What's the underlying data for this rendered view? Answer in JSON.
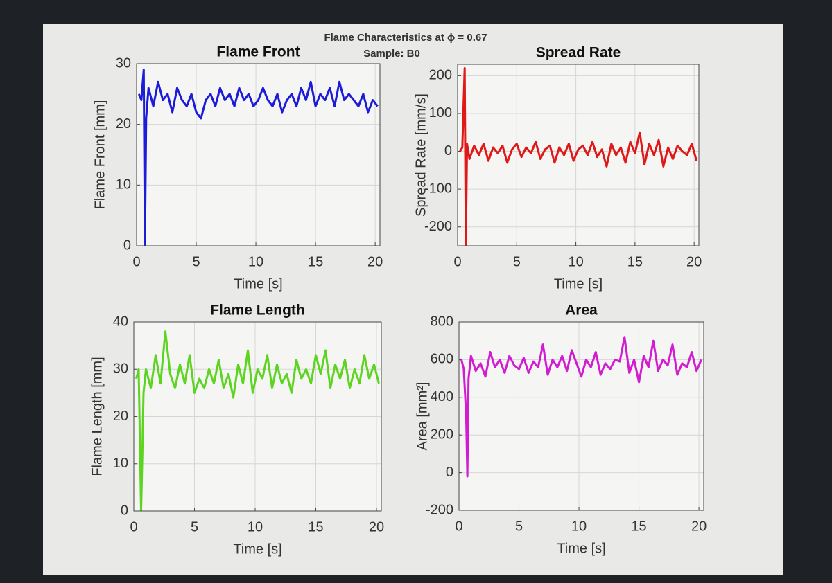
{
  "figure": {
    "title": "Flame Characteristics at ϕ = 0.67",
    "subtitle": "Sample: B0"
  },
  "chart_data": [
    {
      "type": "line",
      "title": "Flame Front",
      "x_label": "Time [s]",
      "y_label": "Flame Front [mm]",
      "color": "#1c1cd8",
      "xlim": [
        0,
        20.4
      ],
      "xticks": [
        0,
        5,
        10,
        15,
        20
      ],
      "ylim": [
        0,
        30
      ],
      "yticks": [
        0,
        10,
        20,
        30
      ],
      "grid": true,
      "x": [
        0.2,
        0.4,
        0.6,
        0.7,
        0.8,
        1.0,
        1.4,
        1.8,
        2.2,
        2.6,
        3.0,
        3.4,
        3.8,
        4.2,
        4.6,
        5.0,
        5.4,
        5.8,
        6.2,
        6.6,
        7.0,
        7.4,
        7.8,
        8.2,
        8.6,
        9.0,
        9.4,
        9.8,
        10.2,
        10.6,
        11.0,
        11.4,
        11.8,
        12.2,
        12.6,
        13.0,
        13.4,
        13.8,
        14.2,
        14.6,
        15.0,
        15.4,
        15.8,
        16.2,
        16.6,
        17.0,
        17.4,
        17.8,
        18.2,
        18.6,
        19.0,
        19.4,
        19.8,
        20.2
      ],
      "values": [
        25,
        24,
        29,
        0,
        21,
        26,
        23,
        27,
        24,
        25,
        22,
        26,
        24,
        23,
        25,
        22,
        21,
        24,
        25,
        23,
        26,
        24,
        25,
        23,
        26,
        24,
        25,
        23,
        24,
        26,
        24,
        23,
        25,
        22,
        24,
        25,
        23,
        26,
        24,
        27,
        23,
        25,
        24,
        26,
        23,
        27,
        24,
        25,
        24,
        23,
        25,
        22,
        24,
        23
      ]
    },
    {
      "type": "line",
      "title": "Spread Rate",
      "x_label": "Time [s]",
      "y_label": "Spread Rate [mm/s]",
      "color": "#e01818",
      "xlim": [
        0,
        20.4
      ],
      "xticks": [
        0,
        5,
        10,
        15,
        20
      ],
      "ylim": [
        -250,
        230
      ],
      "yticks": [
        -200,
        -100,
        0,
        100,
        200
      ],
      "grid": true,
      "x": [
        0.2,
        0.4,
        0.6,
        0.7,
        0.8,
        1.0,
        1.4,
        1.8,
        2.2,
        2.6,
        3.0,
        3.4,
        3.8,
        4.2,
        4.6,
        5.0,
        5.4,
        5.8,
        6.2,
        6.6,
        7.0,
        7.4,
        7.8,
        8.2,
        8.6,
        9.0,
        9.4,
        9.8,
        10.2,
        10.6,
        11.0,
        11.4,
        11.8,
        12.2,
        12.6,
        13.0,
        13.4,
        13.8,
        14.2,
        14.6,
        15.0,
        15.4,
        15.8,
        16.2,
        16.6,
        17.0,
        17.4,
        17.8,
        18.2,
        18.6,
        19.0,
        19.4,
        19.8,
        20.2
      ],
      "values": [
        0,
        10,
        220,
        -250,
        20,
        -20,
        15,
        -10,
        20,
        -25,
        10,
        -5,
        15,
        -30,
        5,
        20,
        -15,
        10,
        -5,
        25,
        -20,
        5,
        15,
        -30,
        10,
        -10,
        20,
        -25,
        5,
        15,
        -10,
        25,
        -15,
        5,
        -40,
        20,
        -10,
        10,
        -30,
        25,
        -5,
        50,
        -35,
        20,
        -10,
        30,
        -40,
        10,
        -20,
        15,
        0,
        -10,
        20,
        -25
      ]
    },
    {
      "type": "line",
      "title": "Flame Length",
      "x_label": "Time [s]",
      "y_label": "Flame Length [mm]",
      "color": "#5cd420",
      "xlim": [
        0,
        20.4
      ],
      "xticks": [
        0,
        5,
        10,
        15,
        20
      ],
      "ylim": [
        0,
        40
      ],
      "yticks": [
        0,
        10,
        20,
        30,
        40
      ],
      "grid": true,
      "x": [
        0.2,
        0.4,
        0.6,
        0.7,
        0.8,
        1.0,
        1.4,
        1.8,
        2.2,
        2.6,
        3.0,
        3.4,
        3.8,
        4.2,
        4.6,
        5.0,
        5.4,
        5.8,
        6.2,
        6.6,
        7.0,
        7.4,
        7.8,
        8.2,
        8.6,
        9.0,
        9.4,
        9.8,
        10.2,
        10.6,
        11.0,
        11.4,
        11.8,
        12.2,
        12.6,
        13.0,
        13.4,
        13.8,
        14.2,
        14.6,
        15.0,
        15.4,
        15.8,
        16.2,
        16.6,
        17.0,
        17.4,
        17.8,
        18.2,
        18.6,
        19.0,
        19.4,
        19.8,
        20.2
      ],
      "values": [
        28,
        30,
        0,
        12,
        25,
        30,
        26,
        33,
        27,
        38,
        29,
        26,
        31,
        27,
        33,
        25,
        28,
        26,
        30,
        27,
        32,
        26,
        29,
        24,
        31,
        27,
        34,
        25,
        30,
        28,
        33,
        26,
        31,
        27,
        29,
        25,
        32,
        28,
        30,
        27,
        33,
        29,
        34,
        26,
        31,
        28,
        32,
        26,
        30,
        27,
        33,
        28,
        31,
        27
      ]
    },
    {
      "type": "line",
      "title": "Area",
      "x_label": "Time [s]",
      "y_label": "Area [mm²]",
      "color": "#d21cd2",
      "xlim": [
        0,
        20.4
      ],
      "xticks": [
        0,
        5,
        10,
        15,
        20
      ],
      "ylim": [
        -200,
        800
      ],
      "yticks": [
        -200,
        0,
        200,
        400,
        600,
        800
      ],
      "grid": true,
      "x": [
        0.2,
        0.4,
        0.6,
        0.7,
        0.8,
        1.0,
        1.4,
        1.8,
        2.2,
        2.6,
        3.0,
        3.4,
        3.8,
        4.2,
        4.6,
        5.0,
        5.4,
        5.8,
        6.2,
        6.6,
        7.0,
        7.4,
        7.8,
        8.2,
        8.6,
        9.0,
        9.4,
        9.8,
        10.2,
        10.6,
        11.0,
        11.4,
        11.8,
        12.2,
        12.6,
        13.0,
        13.4,
        13.8,
        14.2,
        14.6,
        15.0,
        15.4,
        15.8,
        16.2,
        16.6,
        17.0,
        17.4,
        17.8,
        18.2,
        18.6,
        19.0,
        19.4,
        19.8,
        20.2
      ],
      "values": [
        600,
        550,
        300,
        -20,
        500,
        620,
        540,
        580,
        510,
        640,
        560,
        600,
        530,
        620,
        570,
        550,
        610,
        530,
        590,
        560,
        680,
        520,
        600,
        560,
        620,
        540,
        650,
        580,
        510,
        600,
        560,
        640,
        520,
        580,
        550,
        600,
        590,
        720,
        530,
        600,
        480,
        620,
        560,
        700,
        540,
        600,
        570,
        680,
        520,
        580,
        560,
        640,
        540,
        600
      ]
    }
  ]
}
